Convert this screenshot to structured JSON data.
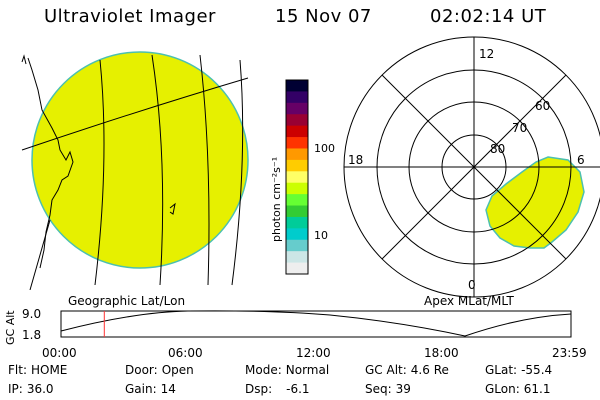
{
  "header": {
    "title": "Ultraviolet Imager",
    "date": "15 Nov 07",
    "time": "02:02:14 UT"
  },
  "colorbar": {
    "unit": "photon cm⁻²s⁻¹",
    "ticks": [
      "100",
      "10"
    ],
    "colors": [
      "#000033",
      "#330066",
      "#660066",
      "#990033",
      "#cc0000",
      "#ff3300",
      "#ff9900",
      "#ffcc00",
      "#ffff66",
      "#ccff00",
      "#66ff33",
      "#33cc33",
      "#00cc99",
      "#00cccc",
      "#66cccc",
      "#cce6e6",
      "#eeeeee"
    ]
  },
  "geo_panel": {
    "label": "Geographic Lat/Lon",
    "fill_color": "#e6f000",
    "edge_color": "#4cc0b0"
  },
  "polar_panel": {
    "label": "Apex MLat/MLT",
    "mlt_labels": {
      "top": "12",
      "left": "18",
      "right": "6",
      "bottom": "0"
    },
    "lat_labels": [
      "60",
      "70",
      "80"
    ]
  },
  "altitude_plot": {
    "ylabel": "GC Alt",
    "ymax": "9.0",
    "ymin": "1.8",
    "x_ticks": [
      "00:00",
      "06:00",
      "12:00",
      "18:00",
      "23:59"
    ],
    "current_time_hours": 2.04
  },
  "status": {
    "flt": {
      "label": "Flt:",
      "value": "HOME"
    },
    "ip": {
      "label": "IP:",
      "value": "36.0"
    },
    "door": {
      "label": "Door:",
      "value": "Open"
    },
    "gain": {
      "label": "Gain:",
      "value": "14"
    },
    "mode": {
      "label": "Mode:",
      "value": "Normal"
    },
    "dsp": {
      "label": "Dsp:",
      "value": "-6.1"
    },
    "gcalt": {
      "label": "GC Alt:",
      "value": "4.6 Re"
    },
    "seq": {
      "label": "Seq:",
      "value": "39"
    },
    "glat": {
      "label": "GLat:",
      "value": "-55.4"
    },
    "glon": {
      "label": "GLon:",
      "value": "61.1"
    }
  }
}
